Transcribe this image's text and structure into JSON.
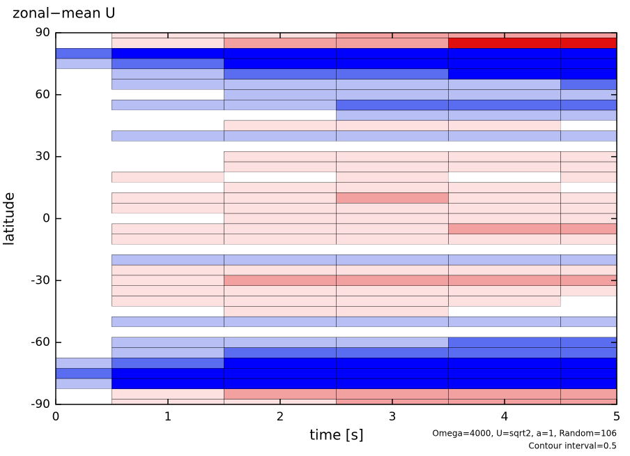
{
  "chart_data": {
    "type": "contour",
    "title": "zonal−mean U",
    "x_label": "time [s]",
    "y_label": "latitude",
    "annotations": [
      "Omega=4000, U=sqrt2, a=1, Random=106",
      "Contour interval=0.5"
    ],
    "x": [
      0,
      1,
      2,
      3,
      4,
      5
    ],
    "y": [
      90,
      85,
      80,
      75,
      70,
      65,
      60,
      55,
      50,
      45,
      40,
      35,
      30,
      25,
      20,
      15,
      10,
      5,
      0,
      -5,
      -10,
      -15,
      -20,
      -25,
      -30,
      -35,
      -40,
      -45,
      -50,
      -55,
      -60,
      -65,
      -70,
      -75,
      -80,
      -85,
      -90
    ],
    "z": [
      [
        0,
        0.5,
        0.5,
        1,
        1,
        1
      ],
      [
        0,
        0.5,
        1,
        1.5,
        2,
        2
      ],
      [
        -1,
        -2,
        -2,
        -2,
        -2,
        -2
      ],
      [
        -0.5,
        -1,
        -2,
        -2.5,
        -2.5,
        -2.5
      ],
      [
        0,
        -0.5,
        -1,
        -1,
        -1.5,
        -1.5
      ],
      [
        0,
        -0.5,
        -0.5,
        -0.5,
        -0.5,
        -1
      ],
      [
        0,
        0,
        -0.5,
        -0.5,
        -0.5,
        -0.5
      ],
      [
        0,
        -0.5,
        -0.5,
        -1,
        -1,
        -1
      ],
      [
        0,
        0,
        0,
        -0.5,
        -0.5,
        -0.5
      ],
      [
        0,
        0,
        0.5,
        0.5,
        0.5,
        0
      ],
      [
        0,
        -0.5,
        -0.5,
        -0.5,
        -0.5,
        -0.5
      ],
      [
        0,
        0,
        0,
        0,
        0,
        0
      ],
      [
        0,
        0,
        0.5,
        0.5,
        0.5,
        0.5
      ],
      [
        0,
        0,
        0.5,
        0.5,
        0.5,
        0.5
      ],
      [
        0,
        0.5,
        0,
        0.5,
        0,
        0.5
      ],
      [
        0,
        0,
        0.5,
        0.5,
        0.5,
        0
      ],
      [
        0,
        0.5,
        0.5,
        1,
        0.5,
        0.5
      ],
      [
        0,
        0.5,
        0.5,
        0.5,
        0.5,
        0.5
      ],
      [
        0,
        0,
        0.5,
        0.5,
        0.5,
        0.5
      ],
      [
        0,
        0.5,
        0.5,
        0.5,
        1,
        1
      ],
      [
        0,
        0.5,
        0.5,
        0.5,
        0.5,
        0.5
      ],
      [
        0,
        0,
        0,
        0,
        0,
        0
      ],
      [
        0,
        -0.5,
        -0.5,
        -0.5,
        -0.5,
        -0.5
      ],
      [
        0,
        0.5,
        0.5,
        0.5,
        0.5,
        0.5
      ],
      [
        0,
        0.5,
        1,
        1,
        1,
        1
      ],
      [
        0,
        0.5,
        0.5,
        0.5,
        0.5,
        0.5
      ],
      [
        0,
        0.5,
        0.5,
        0.5,
        0.5,
        0
      ],
      [
        0,
        0,
        0.5,
        0.5,
        0,
        0
      ],
      [
        0,
        -0.5,
        -0.5,
        -0.5,
        -0.5,
        -0.5
      ],
      [
        0,
        0,
        0,
        0,
        0,
        0
      ],
      [
        0,
        -0.5,
        -0.5,
        -0.5,
        -1,
        -1
      ],
      [
        0,
        -0.5,
        -1,
        -1,
        -1,
        -1
      ],
      [
        -0.5,
        -1,
        -1.5,
        -2,
        -2,
        -2
      ],
      [
        -1,
        -2,
        -2,
        -2.5,
        -2.5,
        -2.5
      ],
      [
        -0.5,
        -2,
        -2,
        -2,
        -2,
        -2
      ],
      [
        0,
        0.5,
        1,
        1.5,
        1.5,
        1.5
      ],
      [
        0,
        0.5,
        0.5,
        1,
        1,
        1
      ]
    ],
    "levels": [
      -1.5,
      -0.75,
      -0.25,
      0.25,
      0.75,
      1.5
    ],
    "colors": [
      "#0000ff",
      "#5a6cf0",
      "#b8bff5",
      "#ffffff",
      "#fde0e0",
      "#f2a0a0",
      "#e01010"
    ],
    "xlim": [
      0,
      5
    ],
    "xticks": [
      0,
      1,
      2,
      3,
      4,
      5
    ],
    "ylim": [
      -90,
      90
    ],
    "yticks": [
      90,
      60,
      30,
      0,
      -30,
      -60,
      -90
    ]
  }
}
